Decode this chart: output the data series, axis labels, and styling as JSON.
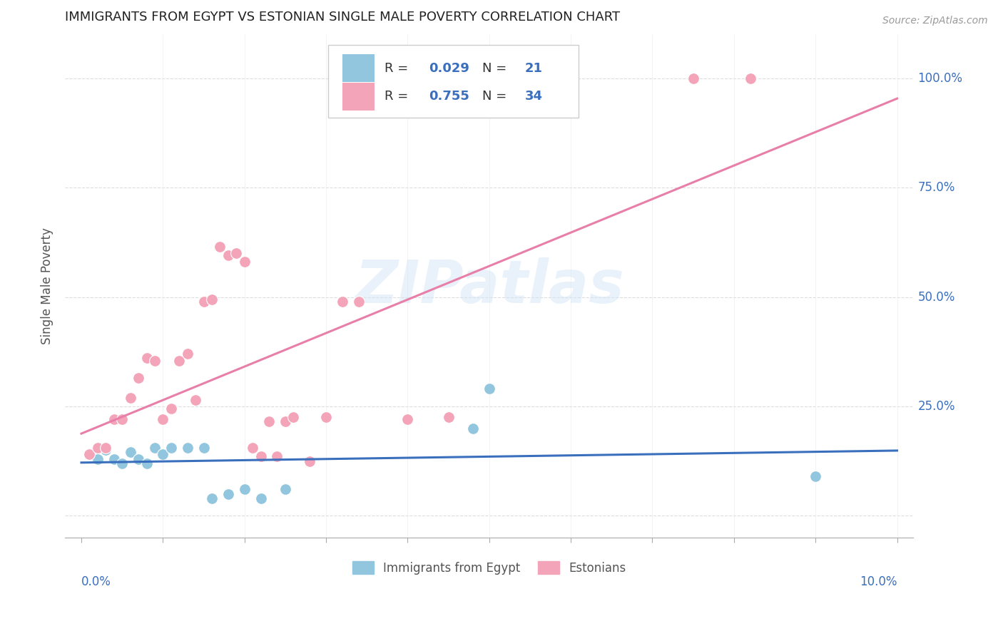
{
  "title": "IMMIGRANTS FROM EGYPT VS ESTONIAN SINGLE MALE POVERTY CORRELATION CHART",
  "source": "Source: ZipAtlas.com",
  "ylabel": "Single Male Poverty",
  "ytick_values": [
    0.0,
    0.25,
    0.5,
    0.75,
    1.0
  ],
  "ytick_labels": [
    "",
    "25.0%",
    "50.0%",
    "75.0%",
    "100.0%"
  ],
  "xlim": [
    0.0,
    0.1
  ],
  "ylim": [
    -0.05,
    1.1
  ],
  "legend_blue_R": "0.029",
  "legend_blue_N": "21",
  "legend_pink_R": "0.755",
  "legend_pink_N": "34",
  "legend_label_blue": "Immigrants from Egypt",
  "legend_label_pink": "Estonians",
  "color_blue": "#92c5de",
  "color_pink": "#f4a4b8",
  "color_trend_blue": "#3a6fbd",
  "color_trend_pink": "#e87fa8",
  "color_legend_text": "#3a6fbd",
  "color_axis_tick": "#3a6fbd",
  "watermark_text": "ZIPatlas",
  "egypt_x": [
    0.001,
    0.002,
    0.003,
    0.004,
    0.005,
    0.006,
    0.007,
    0.008,
    0.009,
    0.01,
    0.011,
    0.013,
    0.015,
    0.016,
    0.018,
    0.02,
    0.022,
    0.025,
    0.048,
    0.05,
    0.09
  ],
  "egypt_y": [
    0.14,
    0.13,
    0.15,
    0.13,
    0.12,
    0.145,
    0.13,
    0.12,
    0.155,
    0.14,
    0.155,
    0.155,
    0.155,
    0.04,
    0.05,
    0.06,
    0.04,
    0.06,
    0.2,
    0.29,
    0.09
  ],
  "estonia_x": [
    0.001,
    0.002,
    0.003,
    0.004,
    0.005,
    0.006,
    0.007,
    0.008,
    0.009,
    0.01,
    0.011,
    0.012,
    0.013,
    0.014,
    0.015,
    0.016,
    0.017,
    0.018,
    0.019,
    0.02,
    0.021,
    0.022,
    0.023,
    0.024,
    0.025,
    0.026,
    0.028,
    0.03,
    0.032,
    0.034,
    0.04,
    0.045,
    0.075,
    0.082
  ],
  "estonia_y": [
    0.14,
    0.155,
    0.155,
    0.22,
    0.22,
    0.27,
    0.315,
    0.36,
    0.355,
    0.22,
    0.245,
    0.355,
    0.37,
    0.265,
    0.49,
    0.495,
    0.615,
    0.595,
    0.6,
    0.58,
    0.155,
    0.135,
    0.215,
    0.135,
    0.215,
    0.225,
    0.125,
    0.225,
    0.49,
    0.49,
    0.22,
    0.225,
    1.0,
    1.0
  ]
}
